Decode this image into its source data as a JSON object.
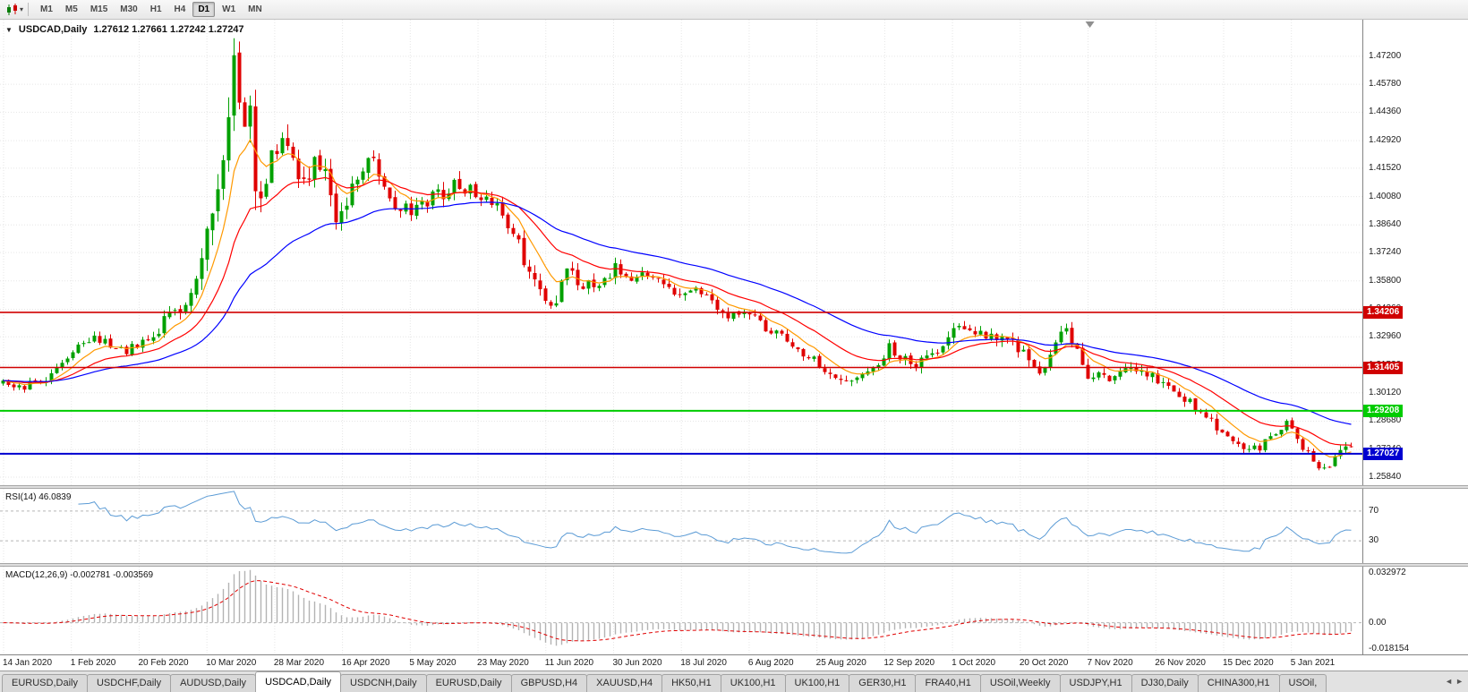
{
  "toolbar": {
    "chart_icon": "candlestick-chart-icon",
    "caret": "▾",
    "timeframes": [
      "M1",
      "M5",
      "M15",
      "M30",
      "H1",
      "H4",
      "D1",
      "W1",
      "MN"
    ],
    "active_timeframe": "D1"
  },
  "chart_header": {
    "collapse_icon": "▼",
    "symbol": "USDCAD,Daily",
    "ohlc": "1.27612 1.27661 1.27242 1.27247"
  },
  "chart_data": {
    "type": "candlestick",
    "symbol": "USDCAD",
    "timeframe": "Daily",
    "open": "1.27612",
    "high": "1.27661",
    "low": "1.27242",
    "close": "1.27247",
    "bars": 252,
    "price_view_max": 1.4906,
    "price_view_min": 1.2543,
    "price_axis_labels": [
      "1.47200",
      "1.45780",
      "1.44360",
      "1.42920",
      "1.41520",
      "1.40080",
      "1.38640",
      "1.37240",
      "1.35800",
      "1.34360",
      "1.32960",
      "1.31520",
      "1.30120",
      "1.28680",
      "1.27240",
      "1.25840"
    ],
    "date_labels": [
      "14 Jan 2020",
      "1 Feb 2020",
      "20 Feb 2020",
      "10 Mar 2020",
      "28 Mar 2020",
      "16 Apr 2020",
      "5 May 2020",
      "23 May 2020",
      "11 Jun 2020",
      "30 Jun 2020",
      "18 Jul 2020",
      "6 Aug 2020",
      "25 Aug 2020",
      "12 Sep 2020",
      "1 Oct 2020",
      "20 Oct 2020",
      "7 Nov 2020",
      "26 Nov 2020",
      "15 Dec 2020",
      "5 Jan 2021"
    ],
    "up_color": "#00a000",
    "down_color": "#e00000",
    "moving_averages": [
      {
        "type": "EMA",
        "period": 8,
        "color": "#ff9900"
      },
      {
        "type": "EMA",
        "period": 20,
        "color": "#ff0000"
      },
      {
        "type": "EMA",
        "period": 45,
        "color": "#0000ff"
      }
    ],
    "horizontal_lines": [
      {
        "price": 1.34206,
        "label": "1.34206",
        "color": "#d00000",
        "width": 1.6
      },
      {
        "price": 1.31405,
        "label": "1.31405",
        "color": "#d00000",
        "width": 1.6
      },
      {
        "price": 1.29208,
        "label": "1.29208",
        "color": "#00cc00",
        "width": 2
      },
      {
        "price": 1.27027,
        "label": "1.27027",
        "color": "#0000d0",
        "width": 2
      }
    ],
    "shift_marker_position": 0.8,
    "close_path_anchors": [
      [
        0,
        1.306
      ],
      [
        4,
        1.304
      ],
      [
        8,
        1.309
      ],
      [
        11,
        1.317
      ],
      [
        14,
        1.326
      ],
      [
        17,
        1.33
      ],
      [
        20,
        1.326
      ],
      [
        23,
        1.323
      ],
      [
        26,
        1.327
      ],
      [
        29,
        1.333
      ],
      [
        31,
        1.342
      ],
      [
        33,
        1.34
      ],
      [
        35,
        1.352
      ],
      [
        37,
        1.368
      ],
      [
        39,
        1.39
      ],
      [
        41,
        1.428
      ],
      [
        43,
        1.463
      ],
      [
        44,
        1.45
      ],
      [
        45,
        1.428
      ],
      [
        46,
        1.438
      ],
      [
        47,
        1.412
      ],
      [
        48,
        1.399
      ],
      [
        50,
        1.418
      ],
      [
        52,
        1.433
      ],
      [
        54,
        1.416
      ],
      [
        56,
        1.408
      ],
      [
        58,
        1.417
      ],
      [
        60,
        1.41
      ],
      [
        62,
        1.392
      ],
      [
        64,
        1.4
      ],
      [
        66,
        1.412
      ],
      [
        68,
        1.421
      ],
      [
        70,
        1.411
      ],
      [
        73,
        1.396
      ],
      [
        76,
        1.394
      ],
      [
        79,
        1.399
      ],
      [
        82,
        1.403
      ],
      [
        85,
        1.408
      ],
      [
        88,
        1.402
      ],
      [
        91,
        1.397
      ],
      [
        93,
        1.391
      ],
      [
        95,
        1.382
      ],
      [
        97,
        1.37
      ],
      [
        99,
        1.356
      ],
      [
        101,
        1.344
      ],
      [
        103,
        1.35
      ],
      [
        105,
        1.362
      ],
      [
        108,
        1.356
      ],
      [
        111,
        1.358
      ],
      [
        114,
        1.365
      ],
      [
        117,
        1.357
      ],
      [
        120,
        1.361
      ],
      [
        123,
        1.358
      ],
      [
        126,
        1.35
      ],
      [
        129,
        1.357
      ],
      [
        132,
        1.347
      ],
      [
        135,
        1.34
      ],
      [
        138,
        1.343
      ],
      [
        141,
        1.336
      ],
      [
        144,
        1.331
      ],
      [
        147,
        1.325
      ],
      [
        150,
        1.32
      ],
      [
        153,
        1.313
      ],
      [
        156,
        1.306
      ],
      [
        159,
        1.31
      ],
      [
        162,
        1.314
      ],
      [
        165,
        1.324
      ],
      [
        167,
        1.319
      ],
      [
        170,
        1.316
      ],
      [
        173,
        1.321
      ],
      [
        176,
        1.33
      ],
      [
        178,
        1.337
      ],
      [
        180,
        1.333
      ],
      [
        183,
        1.329
      ],
      [
        186,
        1.332
      ],
      [
        189,
        1.323
      ],
      [
        192,
        1.315
      ],
      [
        194,
        1.312
      ],
      [
        196,
        1.328
      ],
      [
        198,
        1.333
      ],
      [
        200,
        1.324
      ],
      [
        202,
        1.309
      ],
      [
        204,
        1.313
      ],
      [
        207,
        1.308
      ],
      [
        210,
        1.313
      ],
      [
        213,
        1.31
      ],
      [
        216,
        1.307
      ],
      [
        219,
        1.301
      ],
      [
        222,
        1.294
      ],
      [
        225,
        1.286
      ],
      [
        228,
        1.278
      ],
      [
        231,
        1.272
      ],
      [
        234,
        1.274
      ],
      [
        237,
        1.28
      ],
      [
        239,
        1.285
      ],
      [
        241,
        1.279
      ],
      [
        243,
        1.27
      ],
      [
        245,
        1.264
      ],
      [
        246,
        1.2615
      ],
      [
        247,
        1.266
      ],
      [
        249,
        1.2715
      ],
      [
        251,
        1.2725
      ]
    ],
    "volatility_anchors": [
      [
        0,
        0.0028
      ],
      [
        25,
        0.0032
      ],
      [
        33,
        0.005
      ],
      [
        38,
        0.009
      ],
      [
        42,
        0.014
      ],
      [
        46,
        0.015
      ],
      [
        50,
        0.011
      ],
      [
        56,
        0.0085
      ],
      [
        64,
        0.007
      ],
      [
        75,
        0.0058
      ],
      [
        90,
        0.0052
      ],
      [
        100,
        0.0065
      ],
      [
        110,
        0.0048
      ],
      [
        125,
        0.004
      ],
      [
        140,
        0.0036
      ],
      [
        155,
        0.0034
      ],
      [
        170,
        0.0038
      ],
      [
        180,
        0.0046
      ],
      [
        195,
        0.0044
      ],
      [
        205,
        0.0042
      ],
      [
        220,
        0.0036
      ],
      [
        235,
        0.0032
      ],
      [
        245,
        0.0036
      ],
      [
        251,
        0.003
      ]
    ]
  },
  "rsi_panel": {
    "label": "RSI(14) 46.0839",
    "period": 14,
    "line_color": "#5b9bd5",
    "levels": [
      {
        "value": 70,
        "label": "70"
      },
      {
        "value": 30,
        "label": "30"
      }
    ],
    "range": [
      0,
      100
    ]
  },
  "macd_panel": {
    "label": "MACD(12,26,9) -0.002781 -0.003569",
    "fast": 12,
    "slow": 26,
    "signal": 9,
    "view_max": 0.0345,
    "view_min": -0.0195,
    "histogram_color": "#b3b3b3",
    "signal_color": "#e00000",
    "axis_labels": [
      {
        "value": 0.032972,
        "label": "0.032972"
      },
      {
        "value": 0,
        "label": "0.00"
      },
      {
        "value": -0.018154,
        "label": "-0.018154"
      }
    ]
  },
  "tab_bar": {
    "tabs": [
      "EURUSD,Daily",
      "USDCHF,Daily",
      "AUDUSD,Daily",
      "USDCAD,Daily",
      "USDCNH,Daily",
      "EURUSD,Daily",
      "GBPUSD,H4",
      "XAUUSD,H4",
      "HK50,H1",
      "UK100,H1",
      "UK100,H1",
      "GER30,H1",
      "FRA40,H1",
      "USOil,Weekly",
      "USDJPY,H1",
      "DJ30,Daily",
      "CHINA300,H1",
      "USOil,"
    ],
    "active_tab_index": 3,
    "scroll_arrows": [
      "◄",
      "►"
    ]
  }
}
